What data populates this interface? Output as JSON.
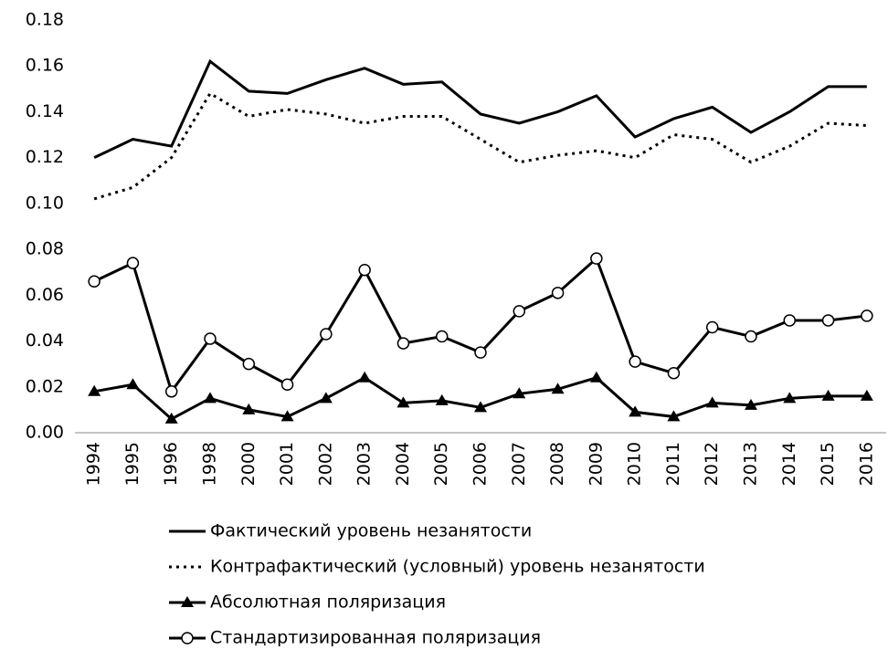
{
  "chart_data": {
    "type": "line",
    "categories": [
      "1994",
      "1995",
      "1996",
      "1998",
      "2000",
      "2001",
      "2002",
      "2003",
      "2004",
      "2005",
      "2006",
      "2007",
      "2008",
      "2009",
      "2010",
      "2011",
      "2012",
      "2013",
      "2014",
      "2015",
      "2016"
    ],
    "series": [
      {
        "name": "Фактический уровень незанятости",
        "color": "#000000",
        "line_style": "solid",
        "marker": "none",
        "values": [
          0.12,
          0.128,
          0.125,
          0.162,
          0.149,
          0.148,
          0.154,
          0.159,
          0.152,
          0.153,
          0.139,
          0.135,
          0.14,
          0.147,
          0.129,
          0.137,
          0.142,
          0.131,
          0.14,
          0.151,
          0.151
        ]
      },
      {
        "name": "Контрафактический (условный) уровень незанятости",
        "color": "#000000",
        "line_style": "dotted",
        "marker": "none",
        "values": [
          0.102,
          0.107,
          0.12,
          0.148,
          0.138,
          0.141,
          0.139,
          0.135,
          0.138,
          0.138,
          0.128,
          0.118,
          0.121,
          0.123,
          0.12,
          0.13,
          0.128,
          0.118,
          0.125,
          0.135,
          0.134
        ]
      },
      {
        "name": "Абсолютная поляризация",
        "color": "#000000",
        "line_style": "solid",
        "marker": "triangle",
        "values": [
          0.018,
          0.021,
          0.006,
          0.015,
          0.01,
          0.007,
          0.015,
          0.024,
          0.013,
          0.014,
          0.011,
          0.017,
          0.019,
          0.024,
          0.009,
          0.007,
          0.013,
          0.012,
          0.015,
          0.016,
          0.016
        ]
      },
      {
        "name": "Стандартизированная поляризация",
        "color": "#000000",
        "line_style": "solid",
        "marker": "circle",
        "values": [
          0.066,
          0.074,
          0.018,
          0.041,
          0.03,
          0.021,
          0.043,
          0.071,
          0.039,
          0.042,
          0.035,
          0.053,
          0.061,
          0.076,
          0.031,
          0.026,
          0.046,
          0.042,
          0.049,
          0.049,
          0.051
        ]
      }
    ],
    "ylim": [
      0,
      0.18
    ],
    "yticks": [
      {
        "value": 0,
        "label": "0.00"
      },
      {
        "value": 0.02,
        "label": "0.02"
      },
      {
        "value": 0.04,
        "label": "0.04"
      },
      {
        "value": 0.06,
        "label": "0.06"
      },
      {
        "value": 0.08,
        "label": "0.08"
      },
      {
        "value": 0.1,
        "label": "0.10"
      },
      {
        "value": 0.12,
        "label": "0.12"
      },
      {
        "value": 0.14,
        "label": "0.14"
      },
      {
        "value": 0.16,
        "label": "0.16"
      },
      {
        "value": 0.18,
        "label": "0.18"
      }
    ],
    "grid": false,
    "legend": "bottom"
  }
}
